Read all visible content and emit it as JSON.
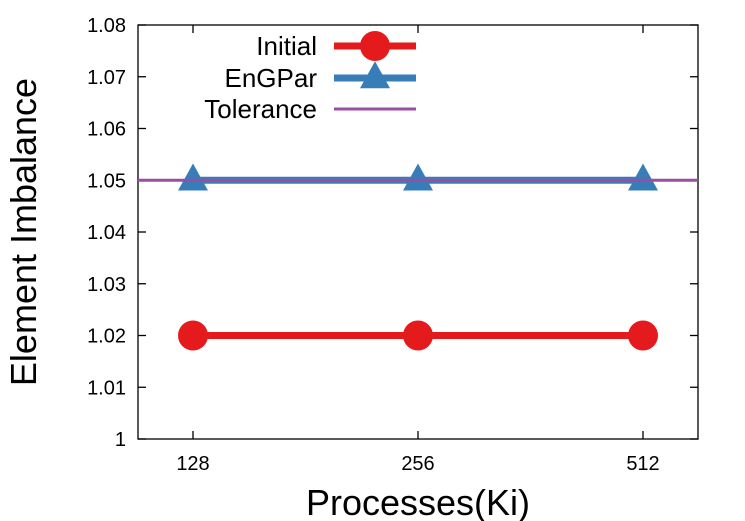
{
  "chart_data": {
    "type": "line",
    "xlabel": "Processes(Ki)",
    "ylabel": "Element Imbalance",
    "categories": [
      "128",
      "256",
      "512"
    ],
    "ylim": [
      1,
      1.08
    ],
    "yticks": [
      1,
      1.01,
      1.02,
      1.03,
      1.04,
      1.05,
      1.06,
      1.07,
      1.08
    ],
    "ytick_labels": [
      "1",
      "1.01",
      "1.02",
      "1.03",
      "1.04",
      "1.05",
      "1.06",
      "1.07",
      "1.08"
    ],
    "grid": false,
    "legend_position": "top-left",
    "series": [
      {
        "name": "Initial",
        "values": [
          1.02,
          1.02,
          1.02
        ],
        "color": "#e41a1c",
        "marker": "circle"
      },
      {
        "name": "EnGPar",
        "values": [
          1.05,
          1.05,
          1.05
        ],
        "color": "#377eb8",
        "marker": "triangle"
      }
    ],
    "reference_lines": [
      {
        "name": "Tolerance",
        "value": 1.05,
        "color": "#984ea3"
      }
    ]
  }
}
